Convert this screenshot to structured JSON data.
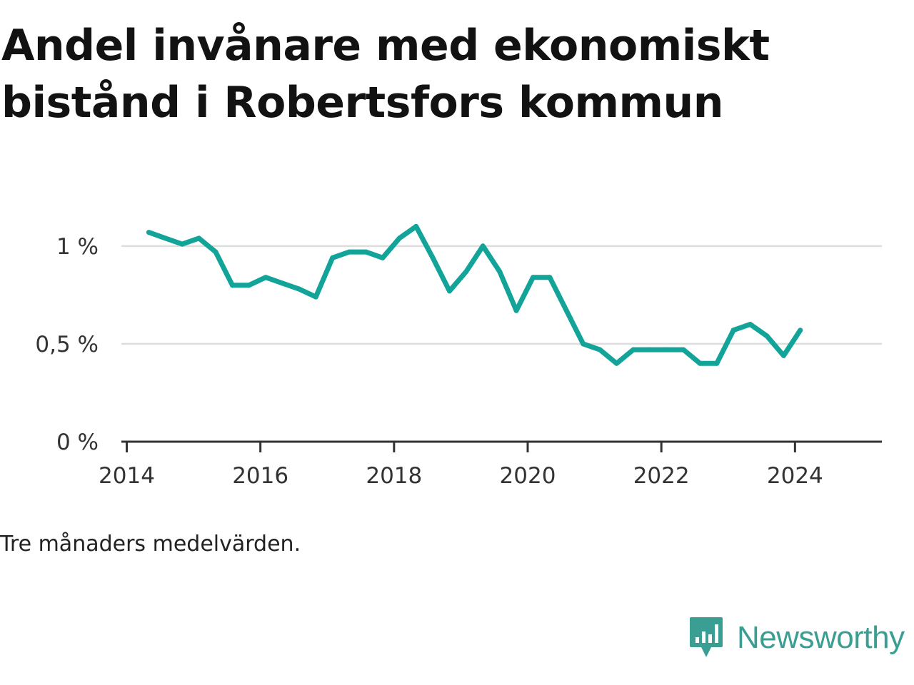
{
  "header": {
    "title": "Andel invånare med ekonomiskt bistånd i Robertsfors kommun"
  },
  "footer": {
    "note": "Tre månaders medelvärden.",
    "brand": "Newsworthy"
  },
  "colors": {
    "line": "#12a499",
    "grid": "#dddddd",
    "axis": "#333333",
    "brand": "#3a9e92"
  },
  "icons": {
    "brand_logo": "bar-chart-speech-bubble-icon"
  },
  "chart_data": {
    "type": "line",
    "title": "Andel invånare med ekonomiskt bistånd i Robertsfors kommun",
    "xlabel": "",
    "ylabel": "",
    "xlim": [
      2013.92,
      2025.3
    ],
    "ylim": [
      0,
      1.2
    ],
    "x_ticks": [
      2014,
      2016,
      2018,
      2020,
      2022,
      2024
    ],
    "x_tick_labels": [
      "2014",
      "2016",
      "2018",
      "2020",
      "2022",
      "2024"
    ],
    "y_ticks": [
      0,
      0.5,
      1
    ],
    "y_tick_labels": [
      "0 %",
      "0,5 %",
      "1 %"
    ],
    "grid": true,
    "legend": "none",
    "series": [
      {
        "x": [
          2014.33,
          2014.58,
          2014.83,
          2015.08,
          2015.33,
          2015.58,
          2015.83,
          2016.08,
          2016.33,
          2016.58,
          2016.83,
          2017.08,
          2017.33,
          2017.58,
          2017.83,
          2018.08,
          2018.33,
          2018.58,
          2018.83,
          2019.08,
          2019.33,
          2019.58,
          2019.83,
          2020.08,
          2020.33,
          2020.58,
          2020.83,
          2021.08,
          2021.33,
          2021.58,
          2021.83,
          2022.08,
          2022.33,
          2022.58,
          2022.83,
          2023.08,
          2023.33,
          2023.58,
          2023.83,
          2024.08
        ],
        "values": [
          1.07,
          1.04,
          1.01,
          1.04,
          0.97,
          0.8,
          0.8,
          0.84,
          0.81,
          0.78,
          0.74,
          0.94,
          0.97,
          0.97,
          0.94,
          1.04,
          1.1,
          0.94,
          0.77,
          0.87,
          1.0,
          0.87,
          0.67,
          0.84,
          0.84,
          0.67,
          0.5,
          0.47,
          0.4,
          0.47,
          0.47,
          0.47,
          0.47,
          0.4,
          0.4,
          0.57,
          0.6,
          0.54,
          0.44,
          0.57
        ]
      }
    ]
  }
}
